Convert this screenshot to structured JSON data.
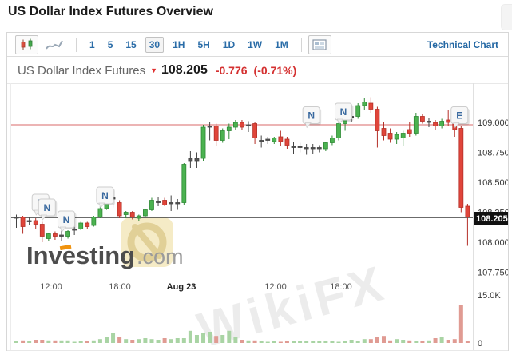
{
  "page": {
    "title": "US Dollar Index Futures Overview"
  },
  "toolbar": {
    "chart_type": [
      "candlestick",
      "line"
    ],
    "timeframes": [
      "1",
      "5",
      "15",
      "30",
      "1H",
      "5H",
      "1D",
      "1W",
      "1M"
    ],
    "selected_timeframe": "30",
    "technical_chart_label": "Technical Chart"
  },
  "quote": {
    "name": "US Dollar Index Futures",
    "direction": "down",
    "price": "108.205",
    "change": "-0.776",
    "change_percent": "(-0.71%)"
  },
  "watermarks": {
    "brand_text": "WikiFX",
    "logo_text": "Investing",
    "logo_suffix": ".com"
  },
  "chart_data": {
    "type": "candlestick",
    "timeframe_minutes": 30,
    "ylim": [
      107.6,
      109.35
    ],
    "grid": false,
    "last_price": 108.205,
    "last_price_line": 108.205,
    "reference_line": 108.98,
    "price_badge": "108.205",
    "price_axis_ticks": [
      109.0,
      108.75,
      108.5,
      108.25,
      108.0,
      107.75
    ],
    "price_axis_labels": [
      "109.000",
      "108.750",
      "108.500",
      "108.250",
      "108.000",
      "107.750"
    ],
    "volume_axis": [
      {
        "label": "15.0K",
        "value": 15
      },
      {
        "label": "0",
        "value": 0
      }
    ],
    "volume_ylim_k": [
      0,
      15
    ],
    "x_axis_labels": [
      {
        "label": "12:00",
        "x": 64,
        "emphasis": false
      },
      {
        "label": "18:00",
        "x": 150,
        "emphasis": false
      },
      {
        "label": "Aug 23",
        "x": 227,
        "emphasis": true
      },
      {
        "label": "12:00",
        "x": 345,
        "emphasis": false
      },
      {
        "label": "18:00",
        "x": 427,
        "emphasis": false
      }
    ],
    "event_markers": [
      {
        "letter": "N",
        "candle_index": 3,
        "anchor_price": 108.24
      },
      {
        "letter": "N",
        "candle_index": 4,
        "anchor_price": 108.2
      },
      {
        "letter": "N",
        "candle_index": 7,
        "anchor_price": 108.1
      },
      {
        "letter": "N",
        "candle_index": 13,
        "anchor_price": 108.3
      },
      {
        "letter": "N",
        "candle_index": 45,
        "anchor_price": 108.97
      },
      {
        "letter": "N",
        "candle_index": 50,
        "anchor_price": 109.0
      },
      {
        "letter": "E",
        "candle_index": 68,
        "anchor_price": 108.97
      }
    ],
    "candles": [
      [
        108.21,
        108.23,
        108.12,
        108.21,
        "d"
      ],
      [
        108.21,
        108.22,
        108.07,
        108.13,
        "r"
      ],
      [
        108.18,
        108.21,
        108.14,
        108.18,
        "d"
      ],
      [
        108.18,
        108.2,
        108.11,
        108.15,
        "r"
      ],
      [
        108.15,
        108.17,
        108.0,
        108.05,
        "r"
      ],
      [
        108.03,
        108.08,
        108.01,
        108.07,
        "g"
      ],
      [
        108.07,
        108.09,
        108.02,
        108.05,
        "r"
      ],
      [
        108.06,
        108.1,
        108.01,
        108.06,
        "d"
      ],
      [
        108.05,
        108.1,
        108.03,
        108.09,
        "g"
      ],
      [
        108.1,
        108.14,
        108.06,
        108.11,
        "d"
      ],
      [
        108.11,
        108.17,
        108.1,
        108.16,
        "g"
      ],
      [
        108.16,
        108.17,
        108.11,
        108.13,
        "r"
      ],
      [
        108.14,
        108.22,
        108.13,
        108.21,
        "g"
      ],
      [
        108.21,
        108.3,
        108.2,
        108.28,
        "g"
      ],
      [
        108.28,
        108.41,
        108.27,
        108.39,
        "g"
      ],
      [
        108.37,
        108.43,
        108.29,
        108.36,
        "d"
      ],
      [
        108.33,
        108.35,
        108.2,
        108.22,
        "r"
      ],
      [
        108.23,
        108.26,
        108.2,
        108.25,
        "g"
      ],
      [
        108.25,
        108.26,
        108.19,
        108.21,
        "r"
      ],
      [
        108.2,
        108.23,
        108.18,
        108.22,
        "g"
      ],
      [
        108.22,
        108.28,
        108.21,
        108.27,
        "g"
      ],
      [
        108.27,
        108.37,
        108.26,
        108.35,
        "g"
      ],
      [
        108.34,
        108.38,
        108.3,
        108.34,
        "d"
      ],
      [
        108.35,
        108.37,
        108.3,
        108.31,
        "r"
      ],
      [
        108.32,
        108.39,
        108.26,
        108.33,
        "d"
      ],
      [
        108.33,
        108.36,
        108.27,
        108.32,
        "d"
      ],
      [
        108.33,
        108.66,
        108.31,
        108.65,
        "g"
      ],
      [
        108.7,
        108.76,
        108.62,
        108.68,
        "d"
      ],
      [
        108.68,
        108.75,
        108.62,
        108.7,
        "d"
      ],
      [
        108.7,
        108.98,
        108.68,
        108.96,
        "g"
      ],
      [
        108.97,
        109.0,
        108.85,
        108.96,
        "d"
      ],
      [
        108.97,
        108.99,
        108.8,
        108.85,
        "r"
      ],
      [
        108.85,
        108.95,
        108.83,
        108.93,
        "g"
      ],
      [
        108.93,
        108.99,
        108.86,
        108.96,
        "g"
      ],
      [
        108.96,
        109.02,
        108.94,
        109.0,
        "g"
      ],
      [
        109.0,
        109.02,
        108.94,
        108.96,
        "r"
      ],
      [
        108.97,
        109.01,
        108.92,
        108.98,
        "d"
      ],
      [
        108.99,
        109.0,
        108.82,
        108.87,
        "r"
      ],
      [
        108.85,
        108.89,
        108.79,
        108.85,
        "d"
      ],
      [
        108.86,
        108.88,
        108.82,
        108.85,
        "d"
      ],
      [
        108.84,
        108.88,
        108.82,
        108.87,
        "g"
      ],
      [
        108.88,
        108.93,
        108.8,
        108.84,
        "r"
      ],
      [
        108.86,
        108.88,
        108.78,
        108.81,
        "r"
      ],
      [
        108.8,
        108.84,
        108.74,
        108.8,
        "d"
      ],
      [
        108.8,
        108.83,
        108.75,
        108.79,
        "d"
      ],
      [
        108.79,
        108.82,
        108.73,
        108.79,
        "d"
      ],
      [
        108.79,
        108.82,
        108.74,
        108.78,
        "d"
      ],
      [
        108.78,
        108.81,
        108.75,
        108.79,
        "d"
      ],
      [
        108.78,
        108.84,
        108.76,
        108.83,
        "g"
      ],
      [
        108.83,
        108.89,
        108.81,
        108.87,
        "g"
      ],
      [
        108.87,
        109.01,
        108.85,
        108.99,
        "g"
      ],
      [
        108.99,
        109.06,
        108.93,
        109.04,
        "g"
      ],
      [
        109.04,
        109.09,
        109.0,
        109.05,
        "d"
      ],
      [
        109.05,
        109.16,
        109.03,
        109.14,
        "g"
      ],
      [
        109.14,
        109.2,
        109.1,
        109.17,
        "g"
      ],
      [
        109.16,
        109.21,
        109.08,
        109.11,
        "r"
      ],
      [
        109.11,
        109.13,
        108.79,
        108.93,
        "r"
      ],
      [
        108.95,
        109.0,
        108.85,
        108.89,
        "r"
      ],
      [
        108.91,
        108.95,
        108.83,
        108.86,
        "r"
      ],
      [
        108.86,
        108.92,
        108.82,
        108.9,
        "g"
      ],
      [
        108.87,
        108.93,
        108.8,
        108.91,
        "g"
      ],
      [
        108.94,
        109.0,
        108.88,
        108.91,
        "r"
      ],
      [
        108.91,
        109.08,
        108.89,
        109.05,
        "g"
      ],
      [
        109.05,
        109.07,
        108.99,
        109.01,
        "r"
      ],
      [
        109.01,
        109.04,
        108.96,
        109.0,
        "d"
      ],
      [
        109.0,
        109.02,
        108.94,
        108.97,
        "r"
      ],
      [
        108.97,
        109.03,
        108.95,
        109.01,
        "g"
      ],
      [
        109.02,
        109.1,
        108.97,
        109.0,
        "r"
      ],
      [
        109.0,
        109.03,
        108.88,
        108.94,
        "r"
      ],
      [
        108.95,
        108.97,
        108.25,
        108.29,
        "r"
      ],
      [
        108.3,
        108.32,
        107.97,
        108.21,
        "r"
      ]
    ],
    "volumes_k": [
      0.5,
      0.8,
      0.5,
      1.0,
      1.0,
      0.8,
      0.8,
      0.8,
      0.8,
      0.3,
      0.5,
      0.5,
      0.8,
      1.2,
      2.0,
      3.0,
      1.8,
      1.2,
      1.0,
      1.2,
      1.5,
      1.2,
      1.0,
      1.5,
      1.2,
      1.5,
      1.5,
      3.8,
      2.5,
      3.0,
      3.5,
      2.2,
      2.5,
      3.8,
      1.8,
      1.0,
      0.8,
      0.8,
      0.5,
      0.3,
      0.5,
      0.3,
      0.5,
      0.5,
      0.5,
      0.5,
      0.5,
      0.5,
      0.5,
      0.5,
      0.3,
      0.5,
      1.0,
      0.5,
      1.2,
      1.2,
      2.0,
      2.2,
      0.8,
      1.2,
      1.0,
      0.8,
      0.5,
      0.5,
      0.8,
      1.5,
      1.8,
      1.0,
      1.2,
      11.8,
      0.5
    ],
    "colors": {
      "up": "#4bb250",
      "up_stroke": "#2f8a35",
      "down": "#e0453a",
      "down_stroke": "#b43028",
      "doji": "#555555",
      "volume_up": "#a9d4a4",
      "volume_down": "#e09b93",
      "reference_line": "#d96a6a",
      "last_price_line": "#3a3a3a",
      "badge_bg": "#111111",
      "marker_letter": "#39699f"
    }
  }
}
